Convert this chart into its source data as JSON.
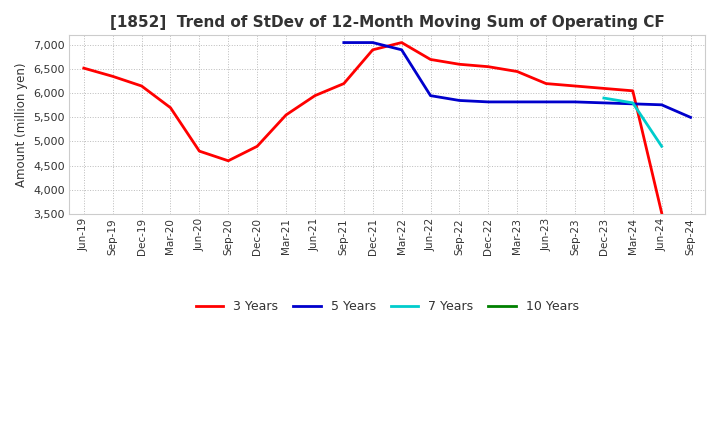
{
  "title": "[1852]  Trend of StDev of 12-Month Moving Sum of Operating CF",
  "ylabel": "Amount (million yen)",
  "ylim": [
    3500,
    7200
  ],
  "yticks": [
    3500,
    4000,
    4500,
    5000,
    5500,
    6000,
    6500,
    7000
  ],
  "background_color": "#ffffff",
  "grid_color": "#bbbbbb",
  "line_3y_color": "#ff0000",
  "line_5y_color": "#0000cc",
  "line_7y_color": "#00cccc",
  "line_10y_color": "#008000",
  "x_labels": [
    "Jun-19",
    "Sep-19",
    "Dec-19",
    "Mar-20",
    "Jun-20",
    "Sep-20",
    "Dec-20",
    "Mar-21",
    "Jun-21",
    "Sep-21",
    "Dec-21",
    "Mar-22",
    "Jun-22",
    "Sep-22",
    "Dec-22",
    "Mar-23",
    "Jun-23",
    "Sep-23",
    "Dec-23",
    "Mar-24",
    "Jun-24",
    "Sep-24"
  ],
  "line_3y": [
    6520,
    6350,
    6150,
    5700,
    4800,
    4600,
    4900,
    5550,
    5950,
    6200,
    6900,
    7050,
    6700,
    6600,
    6550,
    6450,
    6200,
    6150,
    6100,
    6050,
    3520,
    null
  ],
  "line_5y": [
    null,
    null,
    null,
    null,
    null,
    null,
    null,
    null,
    null,
    7050,
    7050,
    6900,
    5950,
    5850,
    5820,
    5820,
    5820,
    5820,
    5800,
    5780,
    5760,
    5500
  ],
  "line_7y": [
    null,
    null,
    null,
    null,
    null,
    null,
    null,
    null,
    null,
    null,
    null,
    null,
    null,
    null,
    null,
    null,
    null,
    null,
    5900,
    5800,
    4900,
    null
  ],
  "line_10y": [
    null,
    null,
    null,
    null,
    null,
    null,
    null,
    null,
    null,
    null,
    null,
    null,
    null,
    null,
    null,
    null,
    null,
    null,
    null,
    null,
    null,
    null
  ],
  "legend_labels": [
    "3 Years",
    "5 Years",
    "7 Years",
    "10 Years"
  ]
}
